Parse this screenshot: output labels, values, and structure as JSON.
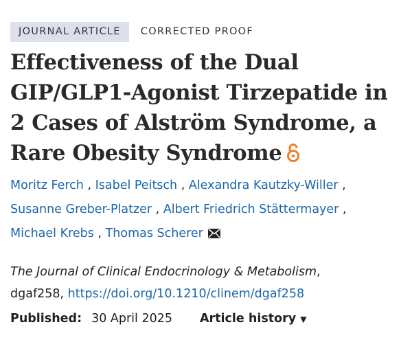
{
  "badges": {
    "type": "JOURNAL ARTICLE",
    "status": "CORRECTED PROOF"
  },
  "article": {
    "title": "Effectiveness of the Dual GIP/GLP1-Agonist Tirzepatide in 2 Cases of Alström Syndrome, a Rare Obesity Syndrome",
    "open_access_icon": "open-access-lock-icon"
  },
  "authors": [
    "Moritz Ferch",
    "Isabel Peitsch",
    "Alexandra Kautzky-Willer",
    "Susanne Greber-Platzer",
    "Albert Friedrich Stättermayer",
    "Michael Krebs",
    "Thomas Scherer"
  ],
  "separator": " , ",
  "corresponding_icon": "envelope-icon",
  "citation": {
    "journal": "The Journal of Clinical Endocrinology & Metabolism",
    "article_id": "dgaf258,",
    "doi": "https://doi.org/10.1210/clinem/dgaf258"
  },
  "meta": {
    "published_label": "Published:",
    "published_date": "30 April 2025",
    "history_label": "Article history",
    "history_caret": "▼"
  },
  "colors": {
    "link": "#1b66a8",
    "badge_bg": "#dde0eb",
    "open_access": "#f07e26"
  }
}
